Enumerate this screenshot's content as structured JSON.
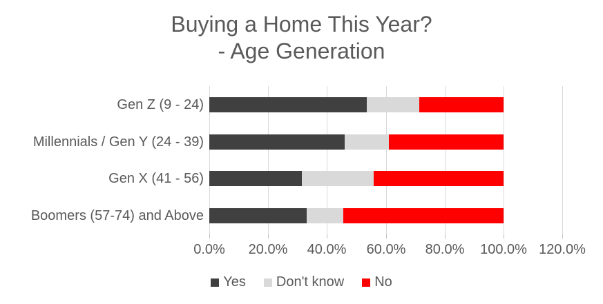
{
  "title": {
    "line1": "Buying a Home This Year?",
    "line2": "- Age Generation"
  },
  "colors": {
    "series_yes": "#404040",
    "series_dont_know": "#d9d9d9",
    "series_no": "#ff0000",
    "text": "#595959",
    "gridline": "#d9d9d9"
  },
  "chart_data": {
    "type": "bar",
    "orientation": "horizontal",
    "stacked": true,
    "title": "Buying a Home This Year? - Age Generation",
    "categories": [
      "Gen Z (9 - 24)",
      "Millennials / Gen Y (24 - 39)",
      "Gen X (41 - 56)",
      "Boomers (57-74) and Above"
    ],
    "series": [
      {
        "name": "Yes",
        "color": "#404040",
        "values": [
          53.5,
          46.0,
          31.5,
          33.0
        ]
      },
      {
        "name": "Don't know",
        "color": "#d9d9d9",
        "values": [
          18.0,
          15.0,
          24.5,
          12.5
        ]
      },
      {
        "name": "No",
        "color": "#ff0000",
        "values": [
          28.5,
          39.0,
          44.0,
          54.5
        ]
      }
    ],
    "xlim": [
      0,
      120
    ],
    "x_tick_values": [
      0,
      20,
      40,
      60,
      80,
      100,
      120
    ],
    "x_tick_labels": [
      "0.0%",
      "20.0%",
      "40.0%",
      "60.0%",
      "80.0%",
      "100.0%",
      "120.0%"
    ],
    "grid": true,
    "legend_position": "bottom"
  }
}
